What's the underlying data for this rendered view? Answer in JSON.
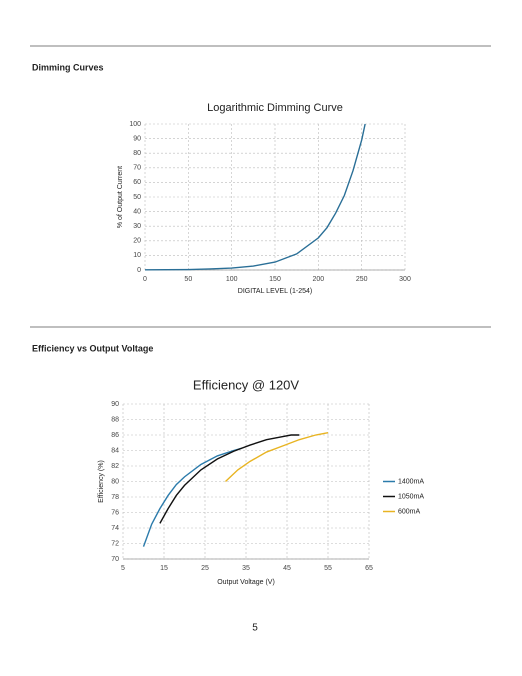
{
  "sections": [
    {
      "heading": "Dimming Curves"
    },
    {
      "heading": "Efficiency vs Output Voltage"
    }
  ],
  "page_number": "5",
  "chart_data": [
    {
      "type": "line",
      "title": "Logarithmic Dimming Curve",
      "x_label": "DIGITAL LEVEL (1-254)",
      "y_label": "% of Output Current",
      "x": [
        0,
        25,
        50,
        75,
        100,
        125,
        150,
        175,
        200,
        210,
        220,
        230,
        240,
        250,
        254
      ],
      "values": [
        0.1,
        0.2,
        0.3,
        0.7,
        1.3,
        2.7,
        5.4,
        11,
        22,
        29,
        39,
        51,
        68,
        89,
        100
      ],
      "color": "#2a6f97",
      "xlim": [
        0,
        300
      ],
      "xticks": [
        0,
        50,
        100,
        150,
        200,
        250,
        300
      ],
      "ylim": [
        0,
        100
      ],
      "yticks": [
        0,
        10,
        20,
        30,
        40,
        50,
        60,
        70,
        80,
        90,
        100
      ],
      "grid": true
    },
    {
      "type": "line",
      "title": "Efficiency @ 120V",
      "x_label": "Output Voltage (V)",
      "y_label": "Efficiency (%)",
      "series": [
        {
          "name": "1400mA",
          "color": "#2b7bab",
          "x": [
            10,
            12,
            14,
            16,
            18,
            20,
            24,
            28,
            32,
            34
          ],
          "values": [
            71.6,
            74.5,
            76.5,
            78.2,
            79.6,
            80.6,
            82.2,
            83.3,
            84.0,
            84.3
          ]
        },
        {
          "name": "1050mA",
          "color": "#111111",
          "x": [
            14,
            16,
            18,
            20,
            24,
            28,
            32,
            36,
            40,
            44,
            46,
            48
          ],
          "values": [
            74.6,
            76.5,
            78.2,
            79.5,
            81.5,
            82.9,
            83.9,
            84.7,
            85.4,
            85.8,
            86.0,
            86.0
          ]
        },
        {
          "name": "600mA",
          "color": "#e8b422",
          "x": [
            30,
            33,
            36,
            40,
            44,
            48,
            52,
            55
          ],
          "values": [
            80.0,
            81.5,
            82.6,
            83.8,
            84.6,
            85.4,
            86.0,
            86.3
          ]
        }
      ],
      "xlim": [
        5,
        65
      ],
      "xticks": [
        5,
        15,
        25,
        35,
        45,
        55,
        65
      ],
      "ylim": [
        70,
        90
      ],
      "yticks": [
        70,
        72,
        74,
        76,
        78,
        80,
        82,
        84,
        86,
        88,
        90
      ],
      "grid": true,
      "legend": "right"
    }
  ]
}
